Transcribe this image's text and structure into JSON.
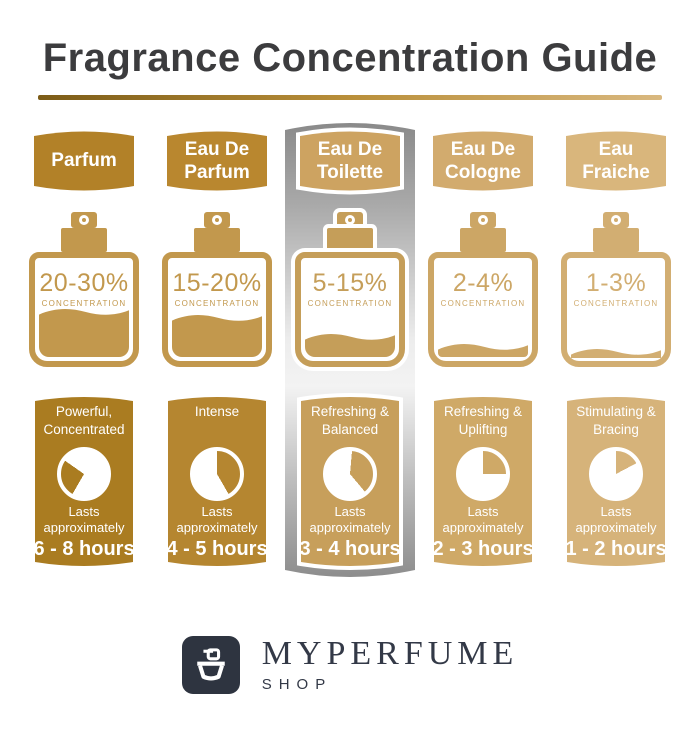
{
  "title": "Fragrance Concentration Guide",
  "palette": {
    "title_color": "#3c3c3e",
    "underline_left": "#7c5c17",
    "underline_mid": "#b98f3a",
    "underline_right": "#d9b87f",
    "band_top": "#8a8a8a",
    "band_mid": "#ededed",
    "band_bottom": "#8d8d8d",
    "logo_bg": "#2e3440",
    "brand_color": "#333947"
  },
  "columns": [
    {
      "header": "Parfum",
      "concentration": "20-30%",
      "concentration_label": "CONCENTRATION",
      "fill_percent": 50,
      "description": "Powerful, Concentrated",
      "lasts_label": "Lasts approximately",
      "duration": "6 - 8 hours",
      "clock": {
        "gold_start": 210,
        "gold_end": 305
      },
      "colors": {
        "header": "#b28128",
        "bottle": "#c2984d",
        "card": "#aa7c21"
      },
      "highlighted": false
    },
    {
      "header": "Eau De Parfum",
      "concentration": "15-20%",
      "concentration_label": "CONCENTRATION",
      "fill_percent": 44,
      "description": "Intense",
      "lasts_label": "Lasts approximately",
      "duration": "4 - 5 hours",
      "clock": {
        "gold_start": 0,
        "gold_end": 150
      },
      "colors": {
        "header": "#b9872f",
        "bottle": "#c2984d",
        "card": "#b58630"
      },
      "highlighted": false
    },
    {
      "header": "Eau De Toilette",
      "concentration": "5-15%",
      "concentration_label": "CONCENTRATION",
      "fill_percent": 25,
      "description": "Refreshing & Balanced",
      "lasts_label": "Lasts approximately",
      "duration": "3 - 4 hours",
      "clock": {
        "gold_start": 5,
        "gold_end": 140
      },
      "colors": {
        "header": "#cda361",
        "bottle": "#c59e59",
        "card": "#c79f5b"
      },
      "highlighted": true
    },
    {
      "header": "Eau De Cologne",
      "concentration": "2-4%",
      "concentration_label": "CONCENTRATION",
      "fill_percent": 16,
      "description": "Refreshing & Uplifting",
      "lasts_label": "Lasts approximately",
      "duration": "2 - 3 hours",
      "clock": {
        "gold_start": 0,
        "gold_end": 90
      },
      "colors": {
        "header": "#d2ab6e",
        "bottle": "#cca665",
        "card": "#cfa967"
      },
      "highlighted": false
    },
    {
      "header": "Eau Fraiche",
      "concentration": "1-3%",
      "concentration_label": "CONCENTRATION",
      "fill_percent": 11,
      "description": "Stimulating & Bracing",
      "lasts_label": "Lasts approximately",
      "duration": "1 - 2 hours",
      "clock": {
        "gold_start": 0,
        "gold_end": 62
      },
      "colors": {
        "header": "#d9b67c",
        "bottle": "#d2ae72",
        "card": "#d6b37a"
      },
      "highlighted": false
    }
  ],
  "footer": {
    "brand": "MYPERFUME",
    "sub": "SHOP",
    "logo_icon": "perfume-bottle-icon"
  }
}
